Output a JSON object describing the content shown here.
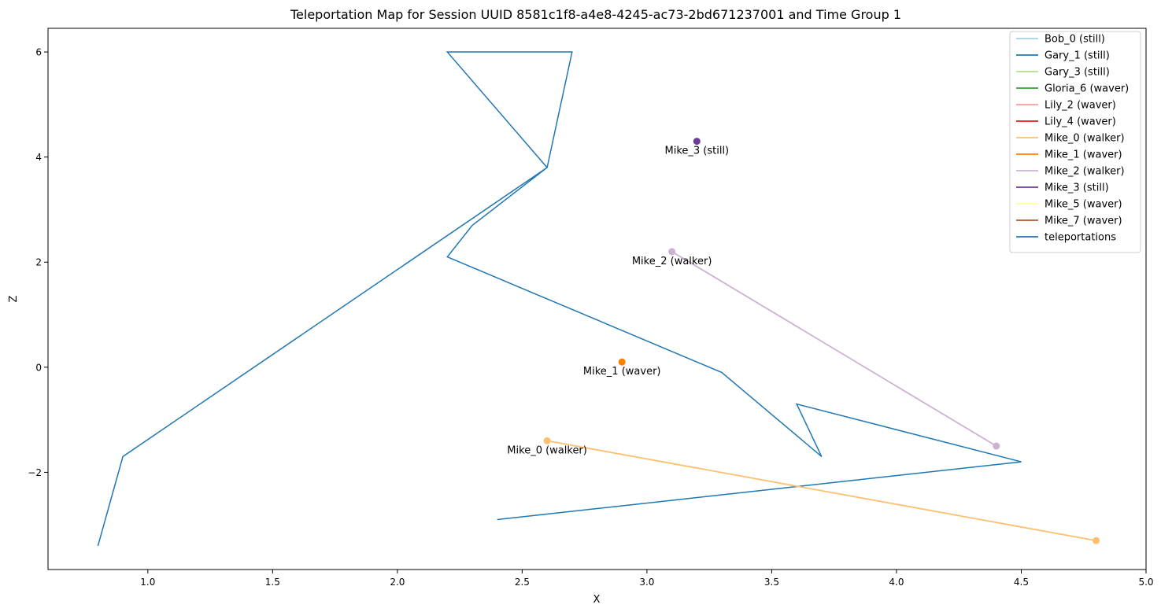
{
  "chart_data": {
    "type": "line",
    "title": "Teleportation Map for Session UUID 8581c1f8-a4e8-4245-ac73-2bd671237001 and Time Group 1",
    "xlabel": "X",
    "ylabel": "Z",
    "xlim": [
      0.6,
      5.0
    ],
    "ylim": [
      -3.85,
      6.45
    ],
    "xticks": [
      1.0,
      1.5,
      2.0,
      2.5,
      3.0,
      3.5,
      4.0,
      4.5,
      5.0
    ],
    "xtick_labels": [
      "1.0",
      "1.5",
      "2.0",
      "2.5",
      "3.0",
      "3.5",
      "4.0",
      "4.5",
      "5.0"
    ],
    "yticks": [
      -2,
      0,
      2,
      4,
      6
    ],
    "ytick_labels": [
      "−2",
      "0",
      "2",
      "4",
      "6"
    ],
    "grid": false,
    "legend_position": "top-right",
    "legend": [
      {
        "label": "Bob_0 (still)",
        "color": "#a6cee3"
      },
      {
        "label": "Gary_1 (still)",
        "color": "#1f78b4"
      },
      {
        "label": "Gary_3 (still)",
        "color": "#b2df8a"
      },
      {
        "label": "Gloria_6 (waver)",
        "color": "#33a02c"
      },
      {
        "label": "Lily_2 (waver)",
        "color": "#fb9a99"
      },
      {
        "label": "Lily_4 (waver)",
        "color": "#e31a1c"
      },
      {
        "label": "Mike_0 (walker)",
        "color": "#fdbf6f"
      },
      {
        "label": "Mike_1 (waver)",
        "color": "#ff7f00"
      },
      {
        "label": "Mike_2 (walker)",
        "color": "#cab2d6"
      },
      {
        "label": "Mike_3 (still)",
        "color": "#6a3d9a"
      },
      {
        "label": "Mike_5 (waver)",
        "color": "#ffff99"
      },
      {
        "label": "Mike_7 (waver)",
        "color": "#b15928"
      },
      {
        "label": "teleportations",
        "color": "#1f77b4"
      }
    ],
    "series": [
      {
        "name": "Mike_0 (walker)",
        "color": "#fdbf6f",
        "points": [
          [
            2.6,
            -1.4
          ],
          [
            4.8,
            -3.3
          ]
        ],
        "label": "Mike_0 (walker)"
      },
      {
        "name": "Mike_1 (waver)",
        "color": "#ff7f00",
        "points": [
          [
            2.9,
            0.1
          ]
        ],
        "label": "Mike_1 (waver)"
      },
      {
        "name": "Mike_2 (walker)",
        "color": "#cab2d6",
        "points": [
          [
            3.1,
            2.2
          ],
          [
            4.4,
            -1.5
          ]
        ],
        "label": "Mike_2 (walker)"
      },
      {
        "name": "Mike_3 (still)",
        "color": "#6a3d9a",
        "points": [
          [
            3.2,
            4.3
          ]
        ],
        "label": "Mike_3 (still)"
      }
    ],
    "teleportations": {
      "name": "teleportations",
      "color": "#1f77b4",
      "points": [
        [
          0.8,
          -3.4
        ],
        [
          0.9,
          -1.7
        ],
        [
          2.6,
          3.8
        ],
        [
          2.2,
          6.0
        ],
        [
          2.7,
          6.0
        ],
        [
          2.6,
          3.8
        ],
        [
          2.3,
          2.7
        ],
        [
          2.2,
          2.1
        ],
        [
          3.3,
          -0.1
        ],
        [
          3.7,
          -1.7
        ],
        [
          3.6,
          -0.7
        ],
        [
          4.5,
          -1.8
        ],
        [
          2.4,
          -2.9
        ]
      ]
    }
  }
}
